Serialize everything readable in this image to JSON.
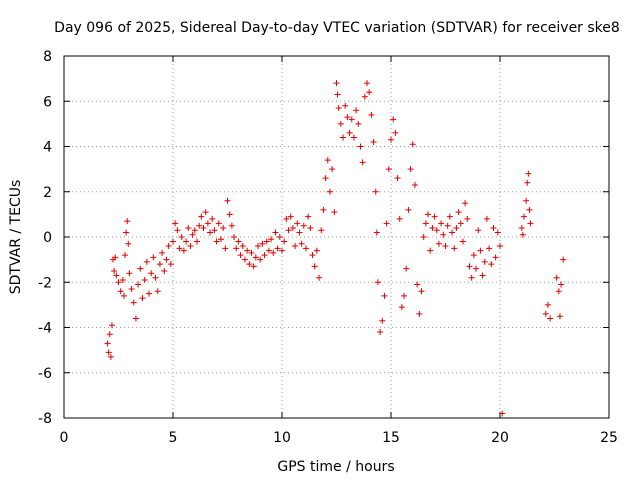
{
  "chart_data": {
    "type": "scatter",
    "title": "Day 096 of 2025, Sidereal Day-to-day VTEC variation (SDTVAR) for receiver ske8",
    "xlabel": "GPS time / hours",
    "ylabel": "SDTVAR / TECUs",
    "xlim": [
      0,
      25
    ],
    "ylim": [
      -8,
      8
    ],
    "xticks": [
      0,
      5,
      10,
      15,
      20,
      25
    ],
    "yticks": [
      -8,
      -6,
      -4,
      -2,
      0,
      2,
      4,
      6,
      8
    ],
    "grid": true,
    "marker": "+",
    "color": "#e00000",
    "series": [
      {
        "name": "SDTVAR",
        "points": [
          [
            2.0,
            -4.7
          ],
          [
            2.05,
            -5.1
          ],
          [
            2.1,
            -4.3
          ],
          [
            2.15,
            -5.3
          ],
          [
            2.2,
            -3.9
          ],
          [
            2.25,
            -1.0
          ],
          [
            2.3,
            -1.5
          ],
          [
            2.35,
            -0.9
          ],
          [
            2.4,
            -1.7
          ],
          [
            2.5,
            -2.0
          ],
          [
            2.6,
            -2.4
          ],
          [
            2.7,
            -1.9
          ],
          [
            2.75,
            -2.6
          ],
          [
            2.8,
            -0.8
          ],
          [
            2.85,
            0.2
          ],
          [
            2.9,
            0.7
          ],
          [
            2.95,
            -0.3
          ],
          [
            3.0,
            -1.6
          ],
          [
            3.1,
            -2.3
          ],
          [
            3.2,
            -2.9
          ],
          [
            3.3,
            -3.6
          ],
          [
            3.4,
            -2.1
          ],
          [
            3.5,
            -1.4
          ],
          [
            3.6,
            -2.7
          ],
          [
            3.7,
            -1.9
          ],
          [
            3.8,
            -1.1
          ],
          [
            3.9,
            -2.5
          ],
          [
            4.0,
            -1.6
          ],
          [
            4.1,
            -0.9
          ],
          [
            4.2,
            -1.8
          ],
          [
            4.3,
            -2.4
          ],
          [
            4.4,
            -1.2
          ],
          [
            4.5,
            -0.7
          ],
          [
            4.6,
            -1.5
          ],
          [
            4.7,
            -1.0
          ],
          [
            4.8,
            -0.4
          ],
          [
            4.9,
            -1.2
          ],
          [
            5.0,
            -0.2
          ],
          [
            5.1,
            0.6
          ],
          [
            5.2,
            0.3
          ],
          [
            5.3,
            -0.5
          ],
          [
            5.4,
            0.0
          ],
          [
            5.5,
            -0.6
          ],
          [
            5.6,
            -0.2
          ],
          [
            5.7,
            0.4
          ],
          [
            5.8,
            -0.4
          ],
          [
            5.9,
            0.1
          ],
          [
            6.0,
            0.3
          ],
          [
            6.1,
            -0.2
          ],
          [
            6.2,
            0.5
          ],
          [
            6.3,
            0.9
          ],
          [
            6.4,
            0.4
          ],
          [
            6.5,
            1.1
          ],
          [
            6.6,
            0.6
          ],
          [
            6.7,
            0.2
          ],
          [
            6.8,
            0.8
          ],
          [
            6.9,
            0.3
          ],
          [
            7.0,
            -0.2
          ],
          [
            7.1,
            0.6
          ],
          [
            7.2,
            -0.1
          ],
          [
            7.3,
            0.4
          ],
          [
            7.4,
            -0.5
          ],
          [
            7.5,
            1.6
          ],
          [
            7.6,
            1.0
          ],
          [
            7.7,
            0.5
          ],
          [
            7.8,
            0.0
          ],
          [
            7.9,
            -0.5
          ],
          [
            8.0,
            -0.2
          ],
          [
            8.1,
            -0.8
          ],
          [
            8.2,
            -0.4
          ],
          [
            8.3,
            -1.0
          ],
          [
            8.4,
            -0.6
          ],
          [
            8.5,
            -1.2
          ],
          [
            8.6,
            -0.7
          ],
          [
            8.7,
            -1.3
          ],
          [
            8.8,
            -0.9
          ],
          [
            8.9,
            -0.4
          ],
          [
            9.0,
            -1.0
          ],
          [
            9.1,
            -0.3
          ],
          [
            9.2,
            -0.8
          ],
          [
            9.3,
            -0.2
          ],
          [
            9.4,
            -0.6
          ],
          [
            9.5,
            -0.1
          ],
          [
            9.6,
            -0.7
          ],
          [
            9.7,
            0.2
          ],
          [
            9.8,
            -0.5
          ],
          [
            9.9,
            0.0
          ],
          [
            10.0,
            -0.6
          ],
          [
            10.1,
            -0.2
          ],
          [
            10.2,
            0.8
          ],
          [
            10.3,
            0.3
          ],
          [
            10.4,
            0.9
          ],
          [
            10.5,
            0.4
          ],
          [
            10.6,
            -0.4
          ],
          [
            10.7,
            0.6
          ],
          [
            10.8,
            0.2
          ],
          [
            10.9,
            -0.3
          ],
          [
            11.0,
            0.5
          ],
          [
            11.1,
            -0.5
          ],
          [
            11.2,
            0.9
          ],
          [
            11.3,
            0.4
          ],
          [
            11.4,
            -0.8
          ],
          [
            11.5,
            -1.3
          ],
          [
            11.6,
            -0.6
          ],
          [
            11.7,
            -1.8
          ],
          [
            11.8,
            0.3
          ],
          [
            11.9,
            1.2
          ],
          [
            12.0,
            2.6
          ],
          [
            12.1,
            3.4
          ],
          [
            12.2,
            2.0
          ],
          [
            12.3,
            3.0
          ],
          [
            12.4,
            1.1
          ],
          [
            12.5,
            6.8
          ],
          [
            12.55,
            6.3
          ],
          [
            12.6,
            5.7
          ],
          [
            12.7,
            5.0
          ],
          [
            12.8,
            4.4
          ],
          [
            12.9,
            5.8
          ],
          [
            13.0,
            5.3
          ],
          [
            13.1,
            4.6
          ],
          [
            13.2,
            5.2
          ],
          [
            13.3,
            4.4
          ],
          [
            13.4,
            5.6
          ],
          [
            13.5,
            5.0
          ],
          [
            13.6,
            4.0
          ],
          [
            13.7,
            3.3
          ],
          [
            13.8,
            6.2
          ],
          [
            13.9,
            6.8
          ],
          [
            14.0,
            6.4
          ],
          [
            14.1,
            5.4
          ],
          [
            14.2,
            4.2
          ],
          [
            14.3,
            2.0
          ],
          [
            14.35,
            0.2
          ],
          [
            14.4,
            -2.0
          ],
          [
            14.5,
            -4.2
          ],
          [
            14.6,
            -3.7
          ],
          [
            14.7,
            -2.6
          ],
          [
            14.8,
            0.6
          ],
          [
            14.9,
            3.0
          ],
          [
            15.0,
            4.3
          ],
          [
            15.1,
            5.2
          ],
          [
            15.2,
            4.6
          ],
          [
            15.3,
            2.6
          ],
          [
            15.4,
            0.8
          ],
          [
            15.5,
            -3.1
          ],
          [
            15.6,
            -2.6
          ],
          [
            15.7,
            -1.4
          ],
          [
            15.8,
            1.2
          ],
          [
            15.9,
            3.0
          ],
          [
            16.0,
            4.1
          ],
          [
            16.1,
            2.3
          ],
          [
            16.2,
            -2.1
          ],
          [
            16.3,
            -3.4
          ],
          [
            16.4,
            -2.4
          ],
          [
            16.5,
            0.0
          ],
          [
            16.6,
            0.6
          ],
          [
            16.7,
            1.0
          ],
          [
            16.8,
            -0.6
          ],
          [
            16.9,
            0.4
          ],
          [
            17.0,
            0.9
          ],
          [
            17.1,
            0.3
          ],
          [
            17.2,
            -0.3
          ],
          [
            17.3,
            0.6
          ],
          [
            17.4,
            0.1
          ],
          [
            17.5,
            -0.4
          ],
          [
            17.6,
            0.5
          ],
          [
            17.7,
            0.9
          ],
          [
            17.8,
            0.2
          ],
          [
            17.9,
            -0.5
          ],
          [
            18.0,
            0.4
          ],
          [
            18.1,
            1.1
          ],
          [
            18.2,
            0.6
          ],
          [
            18.3,
            -0.2
          ],
          [
            18.4,
            1.5
          ],
          [
            18.5,
            0.8
          ],
          [
            18.6,
            -1.3
          ],
          [
            18.7,
            -1.8
          ],
          [
            18.8,
            -0.8
          ],
          [
            18.9,
            -1.4
          ],
          [
            19.0,
            0.3
          ],
          [
            19.1,
            -0.6
          ],
          [
            19.2,
            -1.7
          ],
          [
            19.3,
            -1.1
          ],
          [
            19.4,
            0.8
          ],
          [
            19.5,
            -0.5
          ],
          [
            19.6,
            -1.2
          ],
          [
            19.7,
            0.4
          ],
          [
            19.8,
            -0.9
          ],
          [
            19.9,
            0.2
          ],
          [
            20.0,
            -0.4
          ],
          [
            20.1,
            -7.8
          ],
          [
            21.0,
            0.4
          ],
          [
            21.05,
            0.1
          ],
          [
            21.1,
            0.9
          ],
          [
            21.2,
            1.6
          ],
          [
            21.25,
            2.4
          ],
          [
            21.3,
            2.8
          ],
          [
            21.35,
            1.2
          ],
          [
            21.4,
            0.6
          ],
          [
            22.1,
            -3.4
          ],
          [
            22.2,
            -3.0
          ],
          [
            22.3,
            -3.6
          ],
          [
            22.6,
            -1.8
          ],
          [
            22.7,
            -2.4
          ],
          [
            22.75,
            -3.5
          ],
          [
            22.8,
            -2.1
          ],
          [
            22.9,
            -1.0
          ]
        ]
      }
    ]
  }
}
